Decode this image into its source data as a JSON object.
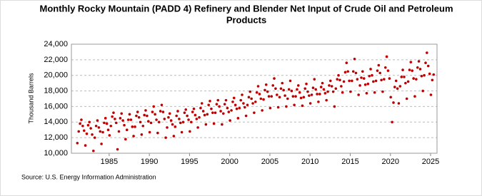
{
  "chart_data": {
    "type": "scatter",
    "title": [
      "Monthly Rocky Mountain (PADD 4) Refinery and Blender Net Input of Crude Oil and Petroleum",
      "Products"
    ],
    "y_label": "Thousand Barrels",
    "source": "Source: U.S. Energy Information Administration",
    "color": "#c00000",
    "grid": true,
    "xlim": [
      1980.3,
      2025.8
    ],
    "xticks": [
      1985,
      1990,
      1995,
      2000,
      2005,
      2010,
      2015,
      2020,
      2025
    ],
    "ylim": [
      10000,
      24000
    ],
    "yticks": [
      {
        "value": 10000,
        "label": "10,000"
      },
      {
        "value": 12000,
        "label": "12,000"
      },
      {
        "value": 14000,
        "label": "14,000"
      },
      {
        "value": 16000,
        "label": "16,000"
      },
      {
        "value": 18000,
        "label": "18,000"
      },
      {
        "value": 20000,
        "label": "20,000"
      },
      {
        "value": 22000,
        "label": "22,000"
      },
      {
        "value": 24000,
        "label": "24,000"
      }
    ],
    "x": [
      1981.04,
      1981.21,
      1981.38,
      1981.54,
      1981.71,
      1981.88,
      1982.04,
      1982.21,
      1982.38,
      1982.54,
      1982.71,
      1982.88,
      1983.04,
      1983.21,
      1983.38,
      1983.54,
      1983.71,
      1983.88,
      1984.04,
      1984.21,
      1984.38,
      1984.54,
      1984.71,
      1984.88,
      1985.04,
      1985.21,
      1985.38,
      1985.54,
      1985.71,
      1985.88,
      1986.04,
      1986.21,
      1986.38,
      1986.54,
      1986.71,
      1986.88,
      1987.04,
      1987.21,
      1987.38,
      1987.54,
      1987.71,
      1987.88,
      1988.04,
      1988.21,
      1988.38,
      1988.54,
      1988.71,
      1988.88,
      1989.04,
      1989.21,
      1989.38,
      1989.54,
      1989.71,
      1989.88,
      1990.04,
      1990.21,
      1990.38,
      1990.54,
      1990.71,
      1990.88,
      1991.04,
      1991.21,
      1991.38,
      1991.54,
      1991.71,
      1991.88,
      1992.04,
      1992.21,
      1992.38,
      1992.54,
      1992.71,
      1992.88,
      1993.04,
      1993.21,
      1993.38,
      1993.54,
      1993.71,
      1993.88,
      1994.04,
      1994.21,
      1994.38,
      1994.54,
      1994.71,
      1994.88,
      1995.04,
      1995.21,
      1995.38,
      1995.54,
      1995.71,
      1995.88,
      1996.04,
      1996.21,
      1996.38,
      1996.54,
      1996.71,
      1996.88,
      1997.04,
      1997.21,
      1997.38,
      1997.54,
      1997.71,
      1997.88,
      1998.04,
      1998.21,
      1998.38,
      1998.54,
      1998.71,
      1998.88,
      1999.04,
      1999.21,
      1999.38,
      1999.54,
      1999.71,
      1999.88,
      2000.04,
      2000.21,
      2000.38,
      2000.54,
      2000.71,
      2000.88,
      2001.04,
      2001.21,
      2001.38,
      2001.54,
      2001.71,
      2001.88,
      2002.04,
      2002.21,
      2002.38,
      2002.54,
      2002.71,
      2002.88,
      2003.04,
      2003.21,
      2003.38,
      2003.54,
      2003.71,
      2003.88,
      2004.04,
      2004.21,
      2004.38,
      2004.54,
      2004.71,
      2004.88,
      2005.04,
      2005.21,
      2005.38,
      2005.54,
      2005.71,
      2005.88,
      2006.04,
      2006.21,
      2006.38,
      2006.54,
      2006.71,
      2006.88,
      2007.04,
      2007.21,
      2007.38,
      2007.54,
      2007.71,
      2007.88,
      2008.04,
      2008.21,
      2008.38,
      2008.54,
      2008.71,
      2008.88,
      2009.04,
      2009.21,
      2009.38,
      2009.54,
      2009.71,
      2009.88,
      2010.04,
      2010.21,
      2010.38,
      2010.54,
      2010.71,
      2010.88,
      2011.04,
      2011.21,
      2011.38,
      2011.54,
      2011.71,
      2011.88,
      2012.04,
      2012.21,
      2012.38,
      2012.54,
      2012.71,
      2012.88,
      2013.04,
      2013.21,
      2013.38,
      2013.54,
      2013.71,
      2013.88,
      2014.04,
      2014.21,
      2014.38,
      2014.54,
      2014.71,
      2014.88,
      2015.04,
      2015.21,
      2015.38,
      2015.54,
      2015.71,
      2015.88,
      2016.04,
      2016.21,
      2016.38,
      2016.54,
      2016.71,
      2016.88,
      2017.04,
      2017.21,
      2017.38,
      2017.54,
      2017.71,
      2017.88,
      2018.04,
      2018.21,
      2018.38,
      2018.54,
      2018.71,
      2018.88,
      2019.04,
      2019.21,
      2019.38,
      2019.54,
      2019.71,
      2019.88,
      2020.04,
      2020.21,
      2020.38,
      2020.54,
      2020.71,
      2020.88,
      2021.04,
      2021.21,
      2021.38,
      2021.54,
      2021.71,
      2021.88,
      2022.04,
      2022.21,
      2022.38,
      2022.54,
      2022.71,
      2022.88,
      2023.04,
      2023.21,
      2023.38,
      2023.54,
      2023.71,
      2023.88,
      2024.04,
      2024.21,
      2024.38,
      2024.54,
      2024.71,
      2024.88,
      2025.04,
      2025.21,
      2025.38
    ],
    "values": [
      11300,
      12800,
      13800,
      14300,
      13500,
      12900,
      11000,
      12500,
      13600,
      14000,
      13200,
      12400,
      10300,
      12000,
      13500,
      14200,
      13300,
      12800,
      11200,
      12700,
      13900,
      14500,
      13800,
      13000,
      12300,
      13500,
      14700,
      15200,
      14400,
      13900,
      10500,
      12800,
      14500,
      15100,
      14200,
      13600,
      11800,
      13000,
      14300,
      15000,
      14300,
      13400,
      12200,
      13400,
      14800,
      15300,
      14600,
      14000,
      12400,
      13500,
      14900,
      15500,
      14800,
      14100,
      12700,
      13900,
      15300,
      16000,
      15000,
      14300,
      12600,
      14000,
      15400,
      16200,
      15300,
      14400,
      12000,
      13300,
      14600,
      15100,
      14200,
      13700,
      12200,
      13400,
      14800,
      15400,
      14400,
      13900,
      12700,
      14000,
      15200,
      15600,
      14800,
      14300,
      12800,
      14000,
      15300,
      15700,
      14900,
      14400,
      13300,
      14600,
      15800,
      16400,
      15400,
      14900,
      13700,
      15000,
      16200,
      16700,
      15700,
      15200,
      13800,
      15200,
      16300,
      16800,
      16000,
      15400,
      13700,
      15100,
      16300,
      16800,
      15800,
      15300,
      14200,
      15500,
      16600,
      17100,
      16200,
      15700,
      14500,
      15800,
      16800,
      17500,
      16400,
      15900,
      14800,
      16200,
      17200,
      17900,
      17000,
      16400,
      15200,
      16600,
      17800,
      18600,
      17600,
      17000,
      15500,
      16900,
      18100,
      18800,
      17900,
      17300,
      15800,
      17300,
      18700,
      19600,
      18300,
      17500,
      15900,
      17200,
      18300,
      19000,
      18100,
      17400,
      16000,
      17000,
      18200,
      19300,
      18000,
      17300,
      16200,
      17300,
      18200,
      18700,
      17800,
      17100,
      16100,
      17200,
      18300,
      18900,
      17900,
      17400,
      16400,
      17500,
      18400,
      19500,
      18200,
      17600,
      16600,
      17600,
      18500,
      19000,
      18200,
      17700,
      16800,
      17900,
      18700,
      19300,
      18600,
      17900,
      16000,
      18300,
      19500,
      20000,
      19400,
      18600,
      17800,
      19200,
      20400,
      21600,
      20500,
      19300,
      17900,
      19300,
      20500,
      22100,
      20300,
      19500,
      17500,
      18700,
      19700,
      20500,
      19600,
      18800,
      17700,
      18900,
      19900,
      20800,
      20000,
      19200,
      17800,
      19300,
      20600,
      21300,
      20300,
      19400,
      17900,
      19500,
      21000,
      22400,
      20600,
      19600,
      17200,
      14000,
      16500,
      18500,
      19300,
      18300,
      16400,
      18600,
      19800,
      20700,
      19800,
      19000,
      17000,
      19200,
      20700,
      21700,
      20600,
      19600,
      17300,
      19500,
      21000,
      21800,
      20800,
      19900,
      18000,
      20000,
      21600,
      22900,
      21200,
      20200,
      17500,
      19400,
      20100
    ]
  }
}
